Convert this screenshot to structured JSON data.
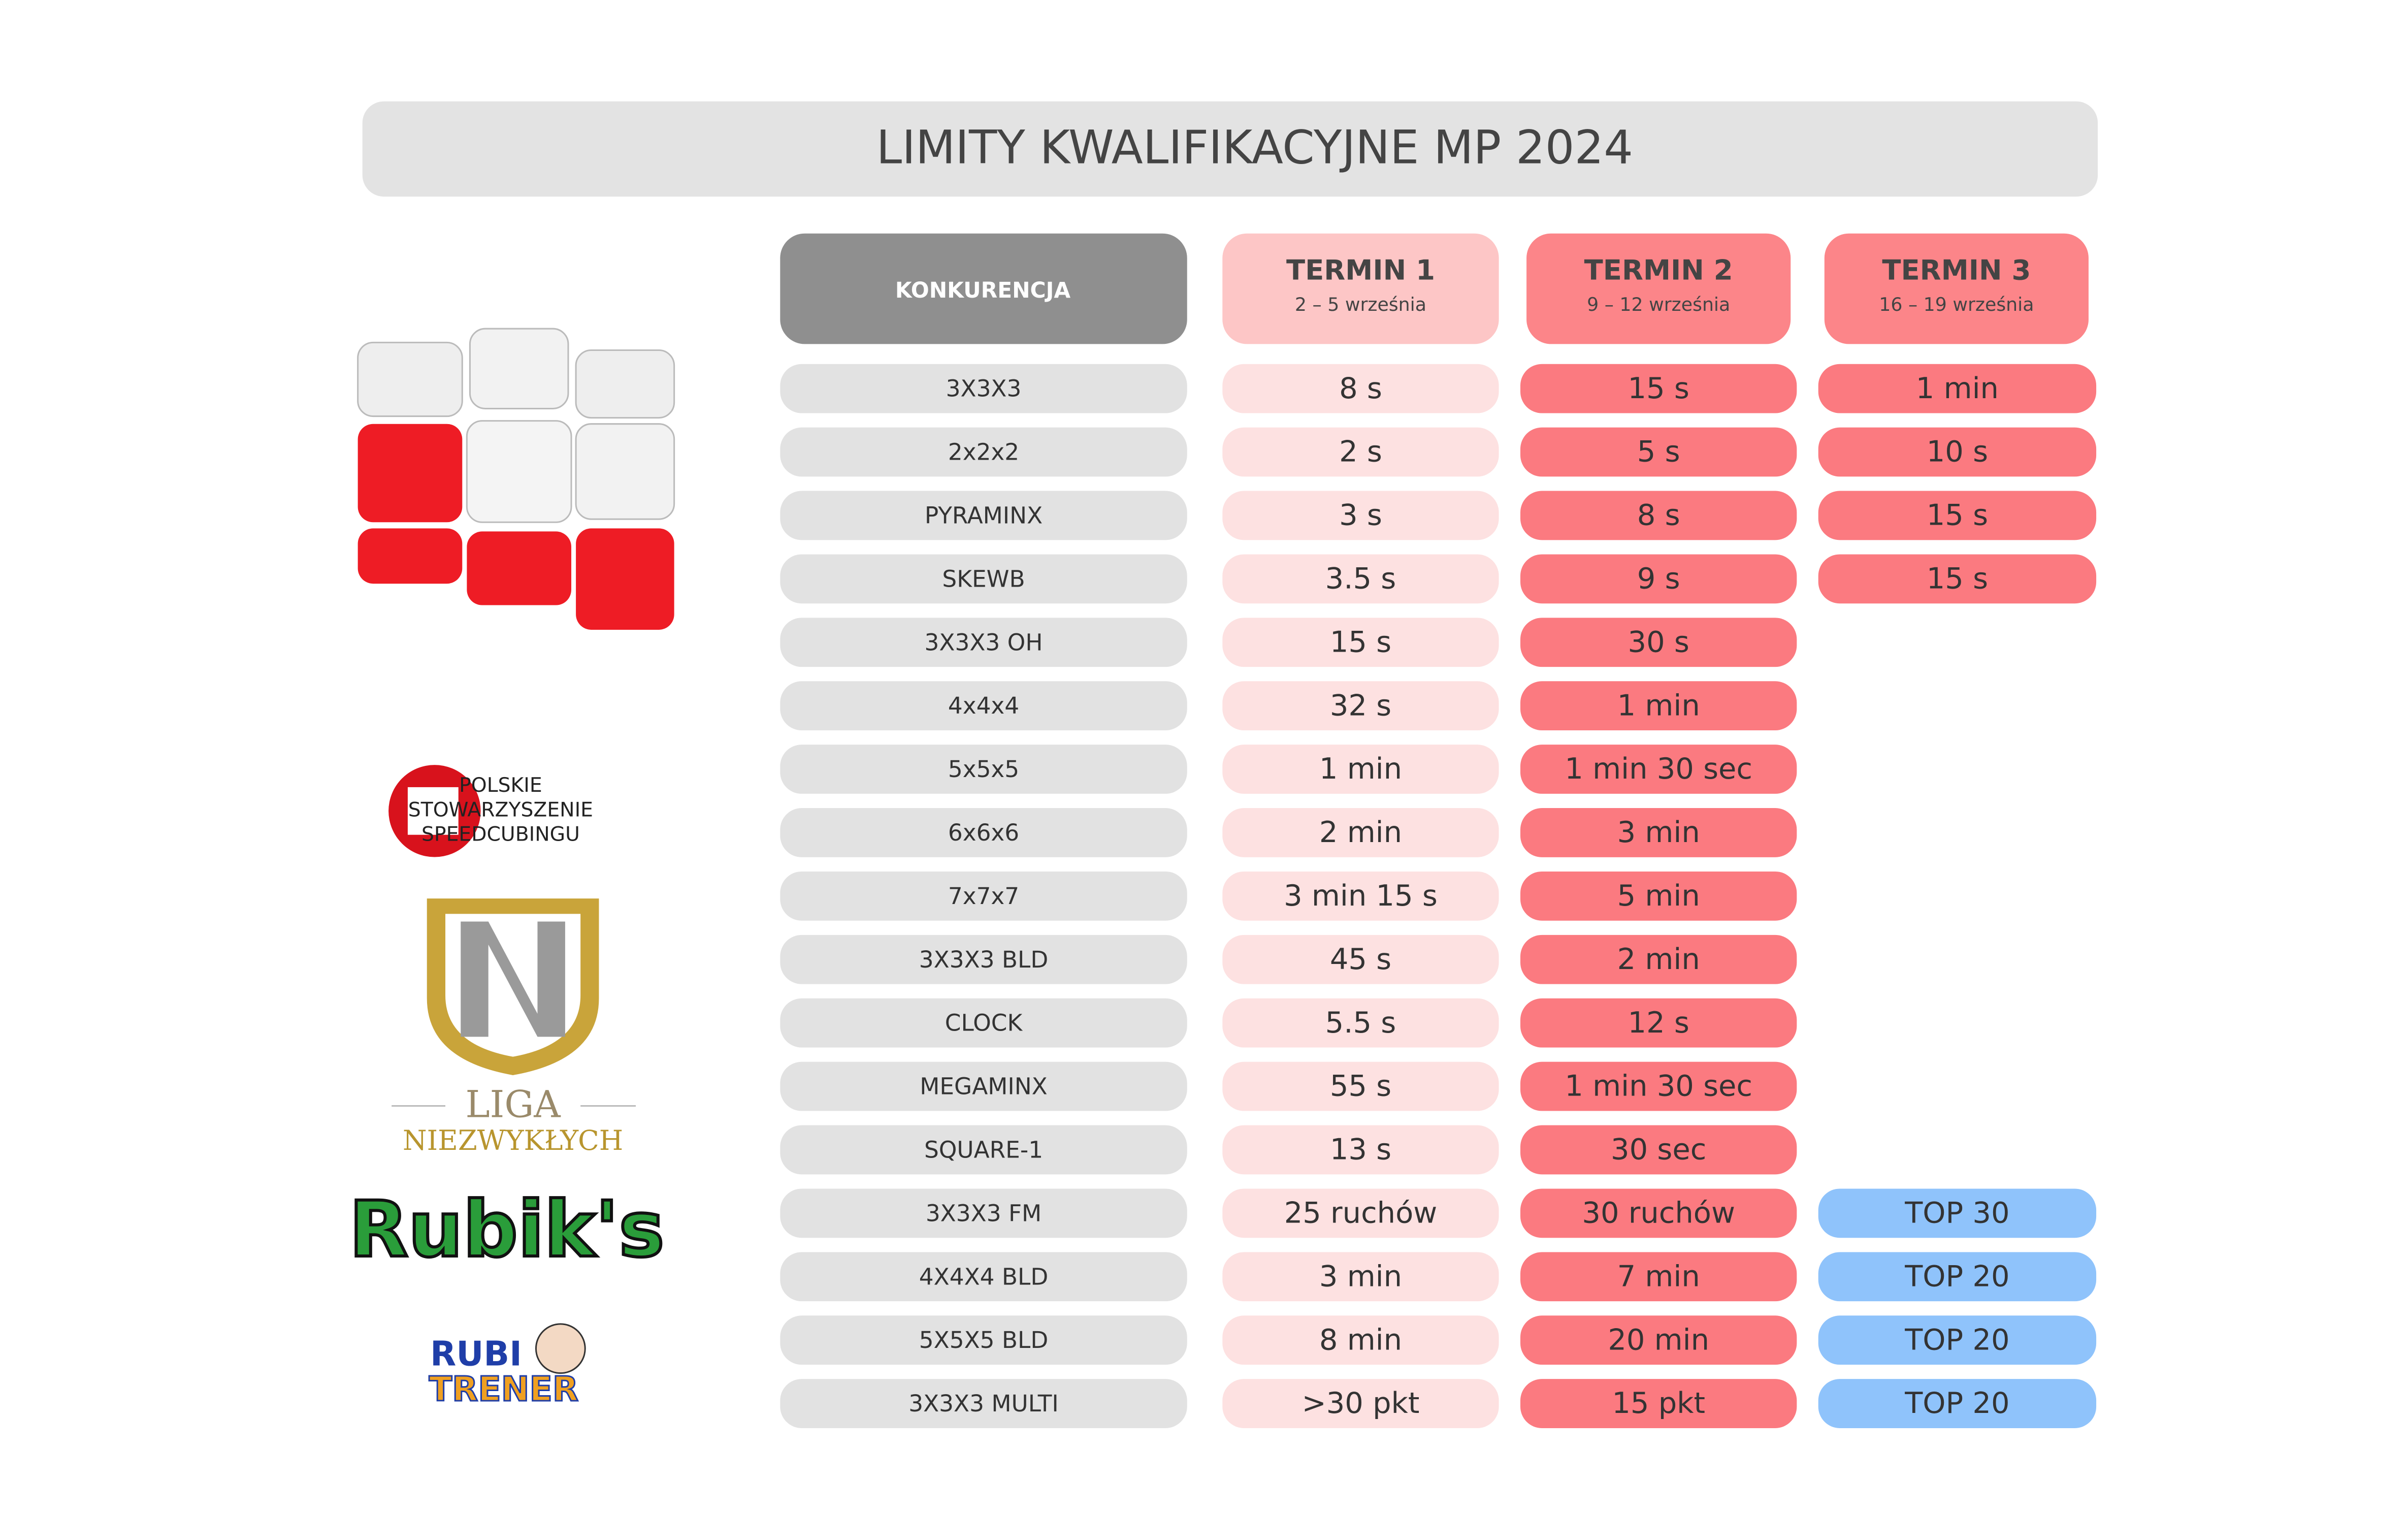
{
  "title": "LIMITY KWALIFIKACYJNE MP 2024",
  "header": {
    "competition": "KONKURENCJA",
    "terms": [
      {
        "name": "TERMIN 1",
        "dates": "2 – 5 września",
        "color": "#fdc6c6"
      },
      {
        "name": "TERMIN 2",
        "dates": "9 – 12 września",
        "color": "#fc8589"
      },
      {
        "name": "TERMIN 3",
        "dates": "16 – 19 września",
        "color": "#fc8589"
      }
    ]
  },
  "rows": [
    {
      "name": "3X3X3",
      "t1": "8 s",
      "t2": "15 s",
      "t3": "1 min",
      "t3_color": "#fb7a80"
    },
    {
      "name": "2x2x2",
      "t1": "2 s",
      "t2": "5 s",
      "t3": "10 s",
      "t3_color": "#fb7a80"
    },
    {
      "name": "PYRAMINX",
      "t1": "3 s",
      "t2": "8 s",
      "t3": "15 s",
      "t3_color": "#fb7a80"
    },
    {
      "name": "SKEWB",
      "t1": "3.5 s",
      "t2": "9 s",
      "t3": "15 s",
      "t3_color": "#fb7a80"
    },
    {
      "name": "3X3X3 OH",
      "t1": "15 s",
      "t2": "30 s",
      "t3": null,
      "t3_color": null
    },
    {
      "name": "4x4x4",
      "t1": "32 s",
      "t2": "1 min",
      "t3": null,
      "t3_color": null
    },
    {
      "name": "5x5x5",
      "t1": "1 min",
      "t2": "1 min 30 sec",
      "t3": null,
      "t3_color": null
    },
    {
      "name": "6x6x6",
      "t1": "2 min",
      "t2": "3 min",
      "t3": null,
      "t3_color": null
    },
    {
      "name": "7x7x7",
      "t1": "3 min 15 s",
      "t2": "5 min",
      "t3": null,
      "t3_color": null
    },
    {
      "name": "3X3X3 BLD",
      "t1": "45 s",
      "t2": "2 min",
      "t3": null,
      "t3_color": null
    },
    {
      "name": "CLOCK",
      "t1": "5.5 s",
      "t2": "12 s",
      "t3": null,
      "t3_color": null
    },
    {
      "name": "MEGAMINX",
      "t1": "55 s",
      "t2": "1 min 30 sec",
      "t3": null,
      "t3_color": null
    },
    {
      "name": "SQUARE-1",
      "t1": "13 s",
      "t2": "30 sec",
      "t3": null,
      "t3_color": null
    },
    {
      "name": "3X3X3 FM",
      "t1": "25 ruchów",
      "t2": "30 ruchów",
      "t3": "TOP 30",
      "t3_color": "#8fc3fb"
    },
    {
      "name": "4X4X4 BLD",
      "t1": "3 min",
      "t2": "7 min",
      "t3": "TOP 20",
      "t3_color": "#8fc3fb"
    },
    {
      "name": "5X5X5 BLD",
      "t1": "8 min",
      "t2": "20 min",
      "t3": "TOP 20",
      "t3_color": "#8fc3fb"
    },
    {
      "name": "3X3X3 MULTI",
      "t1": ">30 pkt",
      "t2": "15 pkt",
      "t3": "TOP 20",
      "t3_color": "#8fc3fb"
    }
  ],
  "logos": {
    "pss": [
      "POLSKIE",
      "STOWARZYSZENIE",
      "SPEEDCUBINGU"
    ],
    "liga": [
      "LIGA",
      "NIEZWYKŁYCH"
    ],
    "rubiks": "Rubik's",
    "rubitrener": [
      "RUBI",
      "TRENER"
    ]
  }
}
